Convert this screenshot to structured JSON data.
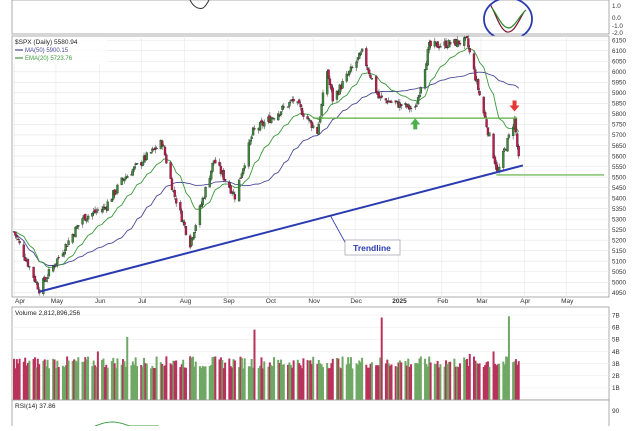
{
  "chart_data": {
    "type": "candlestick",
    "symbol_label": "$SPX (Daily) 5580.94",
    "ma50_label": "MA(50) 5900.15",
    "ema20_label": "EMA(20) 5723.76",
    "volume_label": "Volume 2,812,896,256",
    "rsi_label": "RSI(14) 37.86",
    "trendline_label": "Trendline",
    "x_tick_labels": [
      "Apr",
      "May",
      "Jun",
      "Jul",
      "Aug",
      "Sep",
      "Oct",
      "Nov",
      "Dec",
      "2025",
      "Feb",
      "Mar",
      "Apr",
      "May"
    ],
    "y_ticks": [
      4950,
      5000,
      5050,
      5100,
      5150,
      5200,
      5250,
      5300,
      5350,
      5400,
      5450,
      5500,
      5550,
      5600,
      5650,
      5700,
      5750,
      5800,
      5850,
      5900,
      5950,
      6000,
      6050,
      6100,
      6150
    ],
    "ylim": [
      4930,
      6170
    ],
    "volume_ticks": [
      "7B",
      "6B",
      "5B",
      "4B",
      "3B",
      "2B",
      "1B"
    ],
    "volume_ylim": [
      0,
      7.5
    ],
    "rsi_tick": "90",
    "upper_indicator_ticks": [
      "1.0",
      "0.0",
      "-1.0",
      "-2.0"
    ],
    "key_points": [
      {
        "date": "2024-04-01",
        "close": 5240
      },
      {
        "date": "2024-04-19",
        "close": 4967
      },
      {
        "date": "2024-05-20",
        "close": 5305
      },
      {
        "date": "2024-06-05",
        "close": 5355
      },
      {
        "date": "2024-06-18",
        "close": 5490
      },
      {
        "date": "2024-07-16",
        "close": 5665
      },
      {
        "date": "2024-07-24",
        "close": 5430
      },
      {
        "date": "2024-08-05",
        "close": 5185
      },
      {
        "date": "2024-08-22",
        "close": 5580
      },
      {
        "date": "2024-09-06",
        "close": 5410
      },
      {
        "date": "2024-09-19",
        "close": 5715
      },
      {
        "date": "2024-10-18",
        "close": 5865
      },
      {
        "date": "2024-11-04",
        "close": 5715
      },
      {
        "date": "2024-11-11",
        "close": 6005
      },
      {
        "date": "2024-11-15",
        "close": 5870
      },
      {
        "date": "2024-12-06",
        "close": 6090
      },
      {
        "date": "2024-12-18",
        "close": 5875
      },
      {
        "date": "2025-01-13",
        "close": 5820
      },
      {
        "date": "2025-01-23",
        "close": 6120
      },
      {
        "date": "2025-02-19",
        "close": 6145
      },
      {
        "date": "2025-03-13",
        "close": 5520
      },
      {
        "date": "2025-03-25",
        "close": 5775
      },
      {
        "date": "2025-03-28",
        "close": 5580
      }
    ],
    "support_level": 5780,
    "lower_level": 5510,
    "trendline": [
      {
        "date": "2024-04-19",
        "value": 4955
      },
      {
        "date": "2025-03-31",
        "value": 5555
      }
    ],
    "colors": {
      "up": "#3c8a3a",
      "down": "#c2184a",
      "volume_up": "#6fa864",
      "volume_down": "#b8325c",
      "ma50": "#4a4a9a",
      "ema20": "#3a9a3a",
      "trendline": "#2a3ab0",
      "horizontal_levels": "#5aae3e",
      "arrow_up": "#4caf50",
      "arrow_down": "#e53935",
      "circle": "#2a3ab0"
    }
  }
}
